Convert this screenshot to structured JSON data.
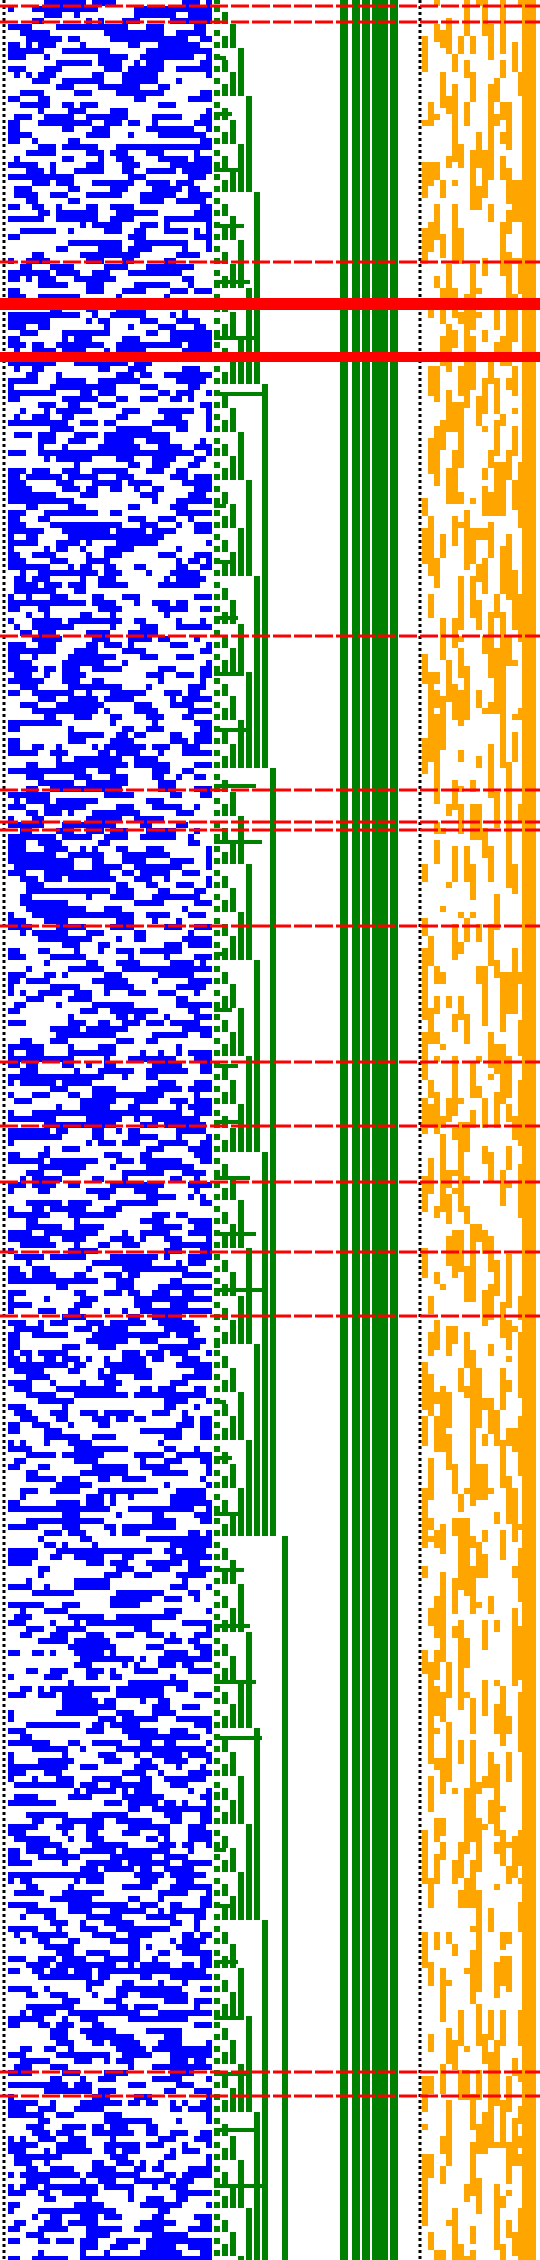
{
  "colors": {
    "background": "#ffffff",
    "noise_left": "#0000ff",
    "counter_bits": "#008000",
    "noise_right": "#ffa500",
    "marker_lines": "#ff0000",
    "dotted_separator": "#000000"
  },
  "regions": {
    "left_panel": {
      "name": "random-bit-field",
      "fill_color": "#0000ff",
      "density": 0.48
    },
    "middle_panel": {
      "name": "binary-counter-columns",
      "fill_color": "#008000"
    },
    "right_panel": {
      "name": "sparse-bit-field",
      "fill_color": "#ffa500",
      "density": 0.3
    }
  },
  "markers": {
    "count": 24,
    "thick_markers": 2
  }
}
